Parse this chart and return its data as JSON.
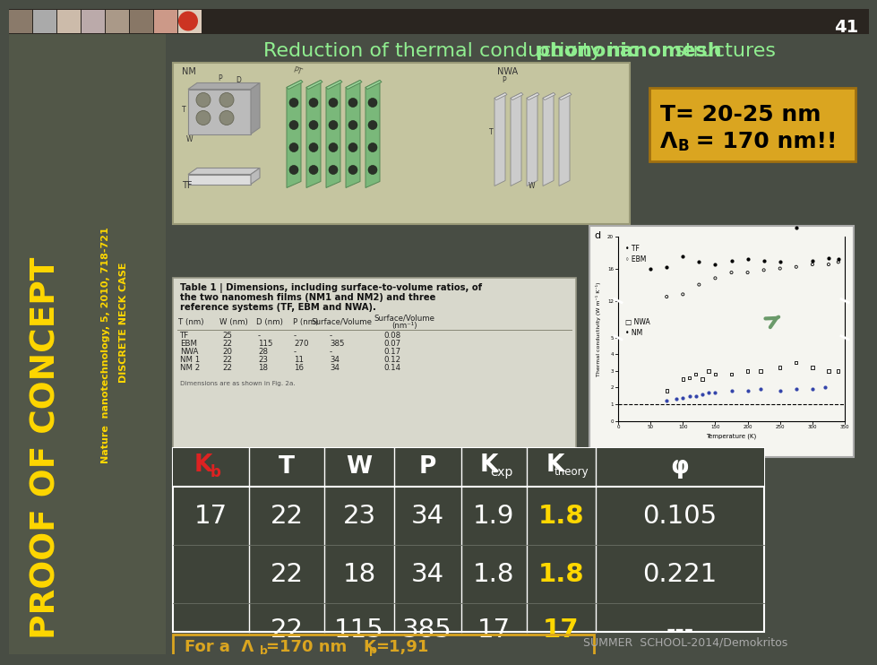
{
  "title_parts": [
    {
      "text": "Reduction of thermal conductivity in ",
      "bold": false
    },
    {
      "text": "phononic ",
      "bold": true
    },
    {
      "text": "nanomesh",
      "bold": true
    },
    {
      "text": " structures",
      "bold": false
    }
  ],
  "slide_number": "41",
  "bg_color": "#484d44",
  "left_panel_color": "#525748",
  "top_strip_color": "#2a2520",
  "title_color": "#90ee90",
  "proof_text": "PROOF OF CONCEPT",
  "proof_color": "#FFD700",
  "ref_text1": "Nature  nanotechnology, 5, 2010, 718-721",
  "ref_text2": "DISCRETE NECK CASE",
  "ref_color": "#FFD700",
  "highlight_box_color": "#DAA520",
  "highlight_text1": "T= 20-25 nm",
  "highlight_text2_part1": "Λ",
  "highlight_text2_part2": "B",
  "highlight_text2_part3": " = 170 nm!!",
  "img_box_color": "#c5c5a0",
  "img_box_edge": "#999977",
  "table1_bg": "#d8d8cc",
  "table1_edge": "#aaaaaa",
  "graph_bg": "#f5f5f0",
  "graph_edge": "#aaaaaa",
  "arrow_color": "#6a9a6a",
  "tbl2_bg": "#3e4339",
  "tbl2_edge": "#aaaaaa",
  "tbl2_header_color": "white",
  "tbl2_Kb_color": "#dd2222",
  "tbl2_yellow": "#FFD700",
  "tbl2_white": "white",
  "footer_edge_color": "#DAA520",
  "footer_text_color": "#DAA520",
  "summer_color": "#aaaaaa",
  "summer_text": "SUMMER  SCHOOL-2014/Demokritos",
  "tbl2_rows": [
    [
      "17",
      "22",
      "23",
      "34",
      "1.9",
      "1.8",
      "0.105"
    ],
    [
      "",
      "22",
      "18",
      "34",
      "1.8",
      "1.8",
      "0.221"
    ],
    [
      "",
      "22",
      "115",
      "385",
      "17",
      "17",
      "---"
    ]
  ],
  "footer_text": "For a  Λ",
  "footer_sub": "b",
  "footer_text2": "=170 nm   K",
  "footer_sub2": "p",
  "footer_text3": "=1,91"
}
